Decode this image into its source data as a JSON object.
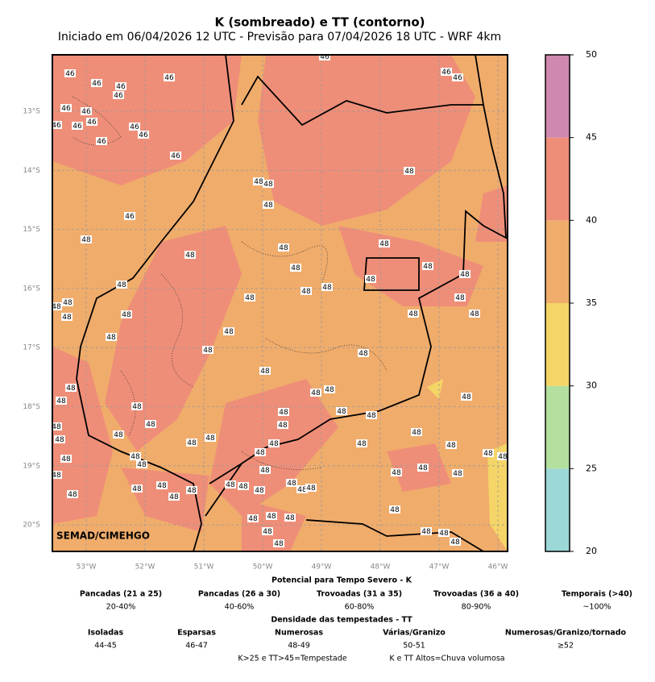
{
  "title": "K (sombreado) e TT (contorno)",
  "subtitle": "Iniciado em 06/04/2026 12 UTC - Previsão para 07/04/2026 18 UTC - WRF 4km",
  "map": {
    "lat_labels": [
      "13°S",
      "14°S",
      "15°S",
      "16°S",
      "17°S",
      "18°S",
      "19°S",
      "20°S"
    ],
    "lon_labels": [
      "53°W",
      "52°W",
      "51°W",
      "50°W",
      "49°W",
      "48°W",
      "47°W",
      "46°W"
    ],
    "credit": "SEMAD/CIMEHGO",
    "contour_labels": [
      "46",
      "46",
      "46",
      "46",
      "46",
      "46",
      "46",
      "46",
      "46",
      "46",
      "46",
      "46",
      "46",
      "46",
      "46",
      "46",
      "46",
      "46",
      "48",
      "48",
      "48",
      "48",
      "48",
      "48",
      "48",
      "48",
      "48",
      "48",
      "48",
      "48",
      "48",
      "48",
      "48",
      "48",
      "48",
      "48",
      "48",
      "48",
      "48",
      "48",
      "48",
      "48",
      "48",
      "48",
      "48",
      "48",
      "48",
      "48",
      "48",
      "48",
      "48",
      "48",
      "48",
      "48",
      "48",
      "48",
      "48",
      "48",
      "48",
      "48",
      "48",
      "48",
      "48",
      "48",
      "48",
      "48",
      "48",
      "48",
      "48",
      "48",
      "48",
      "48",
      "48",
      "48",
      "48",
      "48",
      "48",
      "48",
      "48",
      "48",
      "48",
      "48",
      "48",
      "48",
      "48",
      "48",
      "48",
      "48",
      "48",
      "48",
      "48",
      "48",
      "48",
      "48",
      "48",
      "48",
      "48",
      "48"
    ]
  },
  "colorbar": {
    "ticks": [
      20,
      25,
      30,
      35,
      40,
      45,
      50
    ],
    "colors": [
      "#9dd8d8",
      "#b3e09f",
      "#f5d567",
      "#f0ac6b",
      "#ef8e78",
      "#cf88b0"
    ]
  },
  "legend": {
    "k_title": "Potencial para Tempo Severo - K",
    "k_items": [
      {
        "name": "Pancadas (21 a 25)",
        "range": "20-40%"
      },
      {
        "name": "Pancadas (26 a 30)",
        "range": "40-60%"
      },
      {
        "name": "Trovoadas (31 a 35)",
        "range": "60-80%"
      },
      {
        "name": "Trovoadas (36 a 40)",
        "range": "80-90%"
      },
      {
        "name": "Temporais (>40)",
        "range": "~100%"
      }
    ],
    "tt_title": "Densidade das tempestades - TT",
    "tt_items": [
      {
        "name": "Isoladas",
        "range": "44-45"
      },
      {
        "name": "Esparsas",
        "range": "46-47"
      },
      {
        "name": "Numerosas",
        "range": "48-49"
      },
      {
        "name": "Várias/Granizo",
        "range": "50-51"
      },
      {
        "name": "Numerosas/Granizo/tornado",
        "range": "≥52"
      }
    ],
    "notes": [
      "K>25 e TT>45=Tempestade",
      "K e TT Altos=Chuva volumosa"
    ]
  }
}
